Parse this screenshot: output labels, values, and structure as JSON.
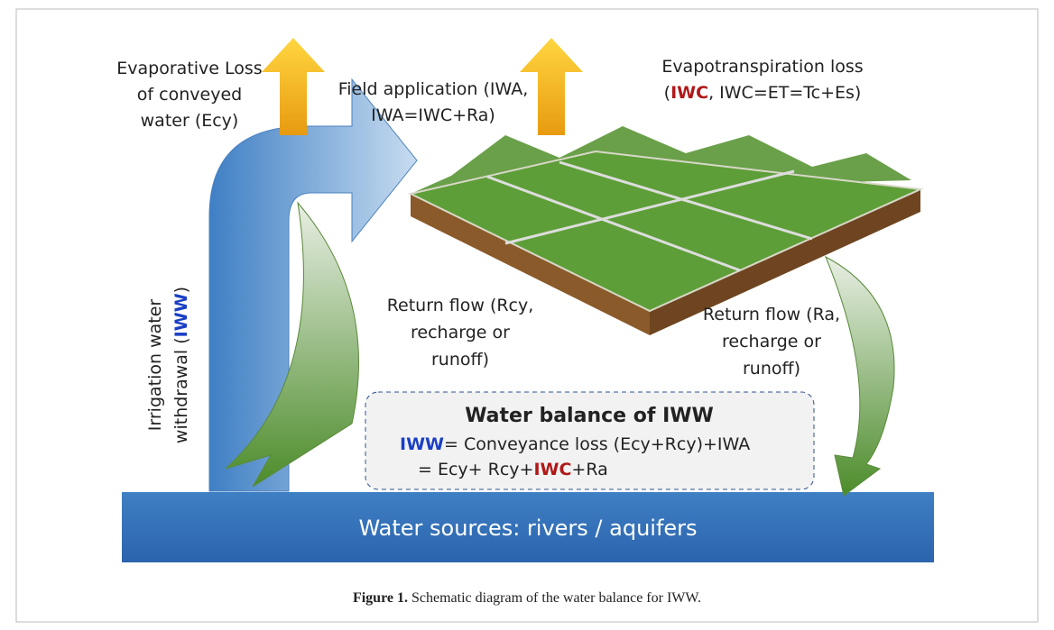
{
  "evaporative_loss": {
    "lines": [
      "Evaporative Loss",
      "of conveyed",
      "water (Ecy)"
    ]
  },
  "field_application": {
    "lines": [
      "Field application (IWA,",
      "IWA=IWC+Ra)"
    ]
  },
  "evapotranspiration": {
    "line1": "Evapotranspiration loss",
    "line2": [
      "(",
      "IWC",
      ", IWC=ET=Tc+Es)"
    ]
  },
  "withdrawal": {
    "line1": "Irrigation water",
    "line2": [
      "withdrawal (",
      "IWW",
      ")"
    ]
  },
  "return_flow_left": {
    "lines": [
      "Return flow (Rcy,",
      "recharge or",
      "runoff)"
    ]
  },
  "return_flow_right": {
    "lines": [
      "Return flow (Ra,",
      "recharge or",
      "runoff)"
    ]
  },
  "balance_box": {
    "title": "Water balance of IWW",
    "line1": [
      "IWW",
      "= Conveyance loss (Ecy+Rcy)+IWA"
    ],
    "line2": [
      "= Ecy+ Rcy+",
      "IWC",
      "+Ra"
    ]
  },
  "water_sources": "Water sources: rivers / aquifers",
  "caption": {
    "label": "Figure 1.",
    "text": " Schematic diagram of the water balance for IWW."
  }
}
